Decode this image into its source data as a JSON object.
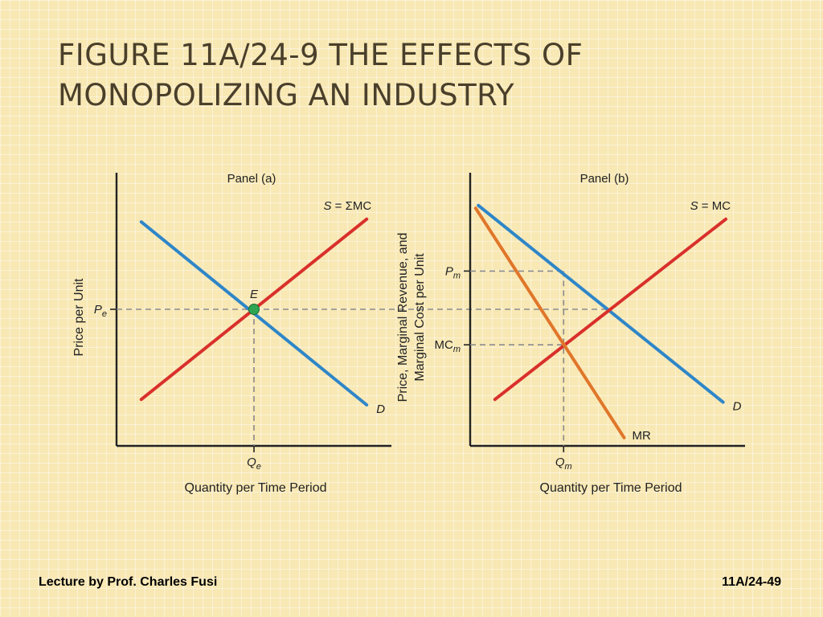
{
  "slide": {
    "title_line1": "FIGURE 11A/24-9  THE EFFECTS OF",
    "title_line2": "MONOPOLIZING AN INDUSTRY",
    "footer_left": "Lecture by Prof. Charles Fusi",
    "footer_right": "11A/24-49"
  },
  "colors": {
    "demand": "#2f86c8",
    "supply": "#d9302b",
    "marginal_revenue": "#e0762a",
    "equilibrium_point": "#2fa552",
    "dashed": "#8a8a8a",
    "axis": "#222222"
  },
  "chart_data": [
    {
      "type": "line",
      "title": "Panel (a)",
      "xlabel": "Quantity per Time Period",
      "ylabel": "Price per Unit",
      "xlim": [
        0,
        10
      ],
      "ylim": [
        0,
        10
      ],
      "x_ticks": [
        {
          "x": 5,
          "label": "Q",
          "sub": "e"
        }
      ],
      "y_ticks": [
        {
          "y": 5,
          "label": "P",
          "sub": "e"
        }
      ],
      "series": [
        {
          "name": "D",
          "role": "demand",
          "points": [
            [
              0.9,
              8.2
            ],
            [
              9.1,
              1.5
            ]
          ]
        },
        {
          "name": "S = ΣMC",
          "role": "supply",
          "points": [
            [
              0.9,
              1.7
            ],
            [
              9.1,
              8.3
            ]
          ]
        }
      ],
      "annotations": [
        {
          "text": "E",
          "x": 5,
          "y": 5,
          "marker": true
        }
      ],
      "grid": false
    },
    {
      "type": "line",
      "title": "Panel (b)",
      "xlabel": "Quantity per Time Period",
      "ylabel_line1": "Price, Marginal Revenue, and",
      "ylabel_line2": "Marginal Cost per Unit",
      "xlim": [
        0,
        10
      ],
      "ylim": [
        0,
        10
      ],
      "x_ticks": [
        {
          "x": 3.4,
          "label": "Q",
          "sub": "m"
        }
      ],
      "y_ticks": [
        {
          "y": 6.4,
          "label": "P",
          "sub": "m"
        },
        {
          "y": 3.7,
          "label": "MC",
          "sub": "m"
        }
      ],
      "series": [
        {
          "name": "D",
          "role": "demand",
          "points": [
            [
              0.3,
              8.8
            ],
            [
              9.2,
              1.6
            ]
          ]
        },
        {
          "name": "S = MC",
          "role": "supply",
          "points": [
            [
              0.9,
              1.7
            ],
            [
              9.3,
              8.3
            ]
          ]
        },
        {
          "name": "MR",
          "role": "marginal_revenue",
          "points": [
            [
              0.2,
              8.7
            ],
            [
              5.6,
              0.3
            ]
          ]
        }
      ],
      "grid": false
    }
  ]
}
